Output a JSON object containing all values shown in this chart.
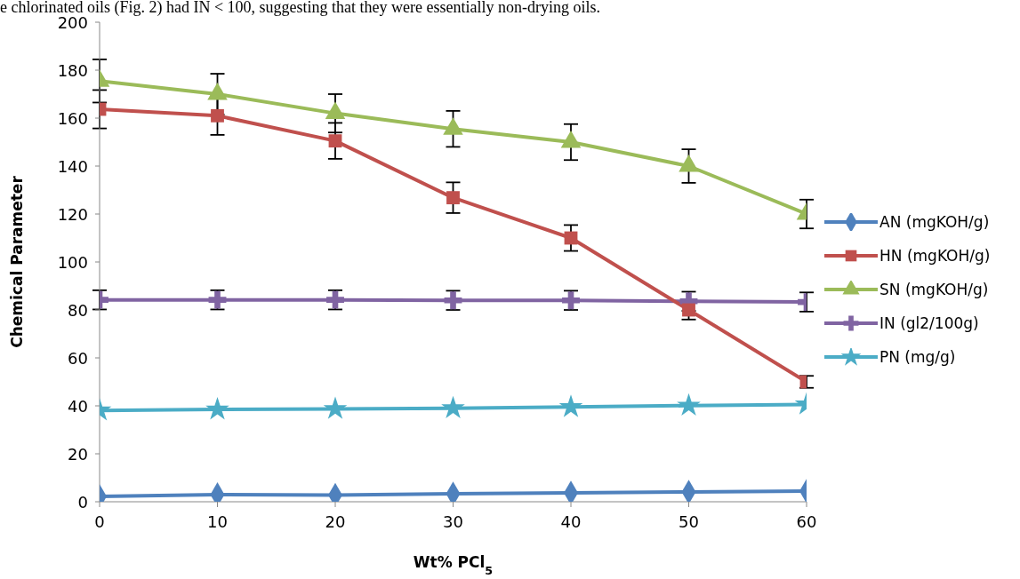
{
  "chart_data": {
    "type": "line",
    "xlabel": "Wt% PCl$_{5}$",
    "ylabel": "Chemical Parameter",
    "annotations": [
      "e chlorinated oils (Fig. 2) had IN < 100, suggesting that they were essentially non-drying oils."
    ],
    "x": [
      0,
      10,
      20,
      30,
      40,
      50,
      60
    ],
    "xlim": [
      0,
      60
    ],
    "xticks": [
      0,
      10,
      20,
      30,
      40,
      50,
      60
    ],
    "ylim": [
      0,
      200
    ],
    "yticks": [
      0,
      20,
      40,
      60,
      80,
      100,
      120,
      140,
      160,
      180,
      200
    ],
    "grid": false,
    "legend": "right",
    "series": [
      {
        "name": "AN (mgKOH/g)",
        "color": "#4f81bd",
        "marker": "diamond",
        "values": [
          2.2,
          3,
          2.8,
          3.3,
          3.7,
          4.1,
          4.4
        ]
      },
      {
        "name": "HN (mgKOH/g)",
        "color": "#c0504d",
        "marker": "square",
        "values": [
          163.7,
          161,
          150.5,
          126.8,
          110,
          80,
          50
        ],
        "errors": [
          8,
          8,
          7.5,
          6.4,
          5.4,
          4,
          2.5
        ]
      },
      {
        "name": "SN (mgKOH/g)",
        "color": "#9bbb59",
        "marker": "triangle",
        "values": [
          175.5,
          170,
          162,
          155.5,
          150,
          140,
          120
        ],
        "errors": [
          9,
          8.5,
          8,
          7.5,
          7.5,
          7,
          6
        ]
      },
      {
        "name": "IN (gl2/100g)",
        "color": "#8064a2",
        "marker": "cross",
        "values": [
          84.2,
          84.2,
          84.2,
          84,
          84,
          83.6,
          83.3
        ],
        "errors": [
          4,
          4,
          4,
          4,
          4,
          4,
          4
        ]
      },
      {
        "name": "PN (mg/g)",
        "color": "#4bacc6",
        "marker": "star",
        "values": [
          38.1,
          38.5,
          38.7,
          39,
          39.5,
          40.1,
          40.6
        ]
      }
    ]
  }
}
